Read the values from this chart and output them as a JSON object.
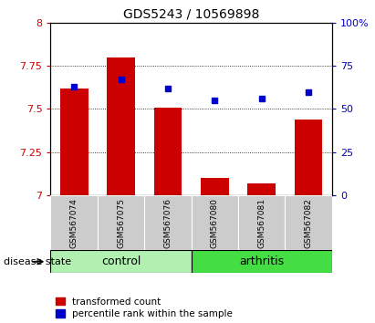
{
  "title": "GDS5243 / 10569898",
  "samples": [
    "GSM567074",
    "GSM567075",
    "GSM567076",
    "GSM567080",
    "GSM567081",
    "GSM567082"
  ],
  "transformed_count": [
    7.62,
    7.8,
    7.51,
    7.1,
    7.07,
    7.44
  ],
  "percentile_rank": [
    63,
    67,
    62,
    55,
    56,
    60
  ],
  "ylim_left": [
    7.0,
    8.0
  ],
  "ylim_right": [
    0,
    100
  ],
  "yticks_left": [
    7.0,
    7.25,
    7.5,
    7.75,
    8.0
  ],
  "yticks_right": [
    0,
    25,
    50,
    75,
    100
  ],
  "ytick_labels_left": [
    "7",
    "7.25",
    "7.5",
    "7.75",
    "8"
  ],
  "ytick_labels_right": [
    "0",
    "25",
    "50",
    "75",
    "100%"
  ],
  "bar_color": "#cc0000",
  "dot_color": "#0000cc",
  "control_group": [
    0,
    1,
    2
  ],
  "arthritis_group": [
    3,
    4,
    5
  ],
  "control_label": "control",
  "arthritis_label": "arthritis",
  "disease_state_label": "disease state",
  "legend_red": "transformed count",
  "legend_blue": "percentile rank within the sample",
  "control_color": "#b2f0b2",
  "arthritis_color": "#44dd44",
  "sample_bg": "#cccccc",
  "bar_width": 0.6,
  "grid_dotted_vals": [
    7.25,
    7.5,
    7.75
  ],
  "dot_marker_size": 5
}
